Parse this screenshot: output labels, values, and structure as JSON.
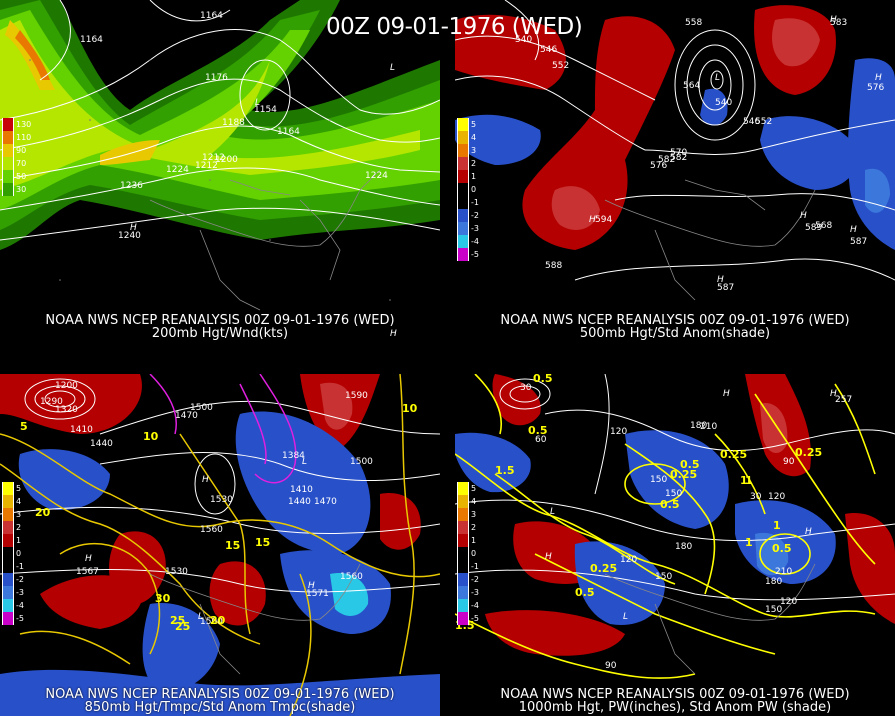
{
  "main_title": "00Z 09-01-1976 (WED)",
  "panels": [
    {
      "id": "p1",
      "caption1": "NOAA NWS NCEP REANALYSIS 00Z 09-01-1976 (WED)",
      "caption2": "200mb Hgt/Wnd(kts)",
      "legend": [
        "130",
        "110",
        "90",
        "70",
        "50",
        "30"
      ],
      "legend_colors": [
        "#c8000a",
        "#e87800",
        "#e8c800",
        "#b4e600",
        "#64d200",
        "#32a000",
        "#1e7800"
      ],
      "contour_labels": [
        "1164",
        "1164",
        "1176",
        "1188",
        "1200",
        "1212",
        "1224",
        "1236",
        "1164",
        "1224",
        "1240",
        "1212",
        "1154"
      ]
    },
    {
      "id": "p2",
      "caption1": "NOAA NWS NCEP REANALYSIS 00Z 09-01-1976 (WED)",
      "caption2": "500mb Hgt/Std Anom(shade)",
      "legend": [
        "5",
        "4",
        "3",
        "2",
        "1",
        "0",
        "-1",
        "-2",
        "-3",
        "-4",
        "-5"
      ],
      "legend_colors": [
        "#ffff00",
        "#e8b400",
        "#e87800",
        "#c83232",
        "#b40000",
        "#000000",
        "#000000",
        "#2850c8",
        "#3c78dc",
        "#28c8e6",
        "#c800c8"
      ],
      "contour_labels": [
        "540",
        "546",
        "552",
        "558",
        "564",
        "570",
        "576",
        "582",
        "588",
        "594",
        "540",
        "546",
        "552",
        "582",
        "576",
        "568",
        "587",
        "583",
        "589",
        "587"
      ]
    },
    {
      "id": "p3",
      "caption1": "NOAA NWS NCEP REANALYSIS 00Z 09-01-1976 (WED)",
      "caption2": "850mb Hgt/Tmpc/Std Anom Tmpc(shade)",
      "legend": [
        "5",
        "4",
        "3",
        "2",
        "1",
        "0",
        "-1",
        "-2",
        "-3",
        "-4",
        "-5"
      ],
      "contour_labels": [
        "1200",
        "1290",
        "1320",
        "1410",
        "1440",
        "1470",
        "1500",
        "1530",
        "1560",
        "1590",
        "1410",
        "1440",
        "1470",
        "1500",
        "1530",
        "1560",
        "1567",
        "1571",
        "1500",
        "1384"
      ],
      "temp_labels": [
        "5",
        "10",
        "15",
        "20",
        "25",
        "30",
        "10",
        "15",
        "20",
        "25"
      ]
    },
    {
      "id": "p4",
      "caption1": "NOAA NWS NCEP REANALYSIS 00Z 09-01-1976 (WED)",
      "caption2": "1000mb Hgt, PW(inches), Std Anom PW (shade)",
      "legend": [
        "5",
        "4",
        "3",
        "2",
        "1",
        "0",
        "-1",
        "-2",
        "-3",
        "-4",
        "-5"
      ],
      "contour_labels": [
        "30",
        "60",
        "90",
        "120",
        "150",
        "180",
        "210",
        "240",
        "257",
        "90",
        "120",
        "150",
        "180",
        "210",
        "30",
        "120",
        "150",
        "120",
        "150",
        "180"
      ],
      "pw_labels": [
        "0.5",
        "1.5",
        "0.5",
        "1",
        "0.25",
        "0.5",
        "0.25",
        "1",
        "0.5",
        "0.25",
        "0.5",
        "1",
        "0.5",
        "0.25",
        "1.5",
        "1"
      ]
    }
  ]
}
